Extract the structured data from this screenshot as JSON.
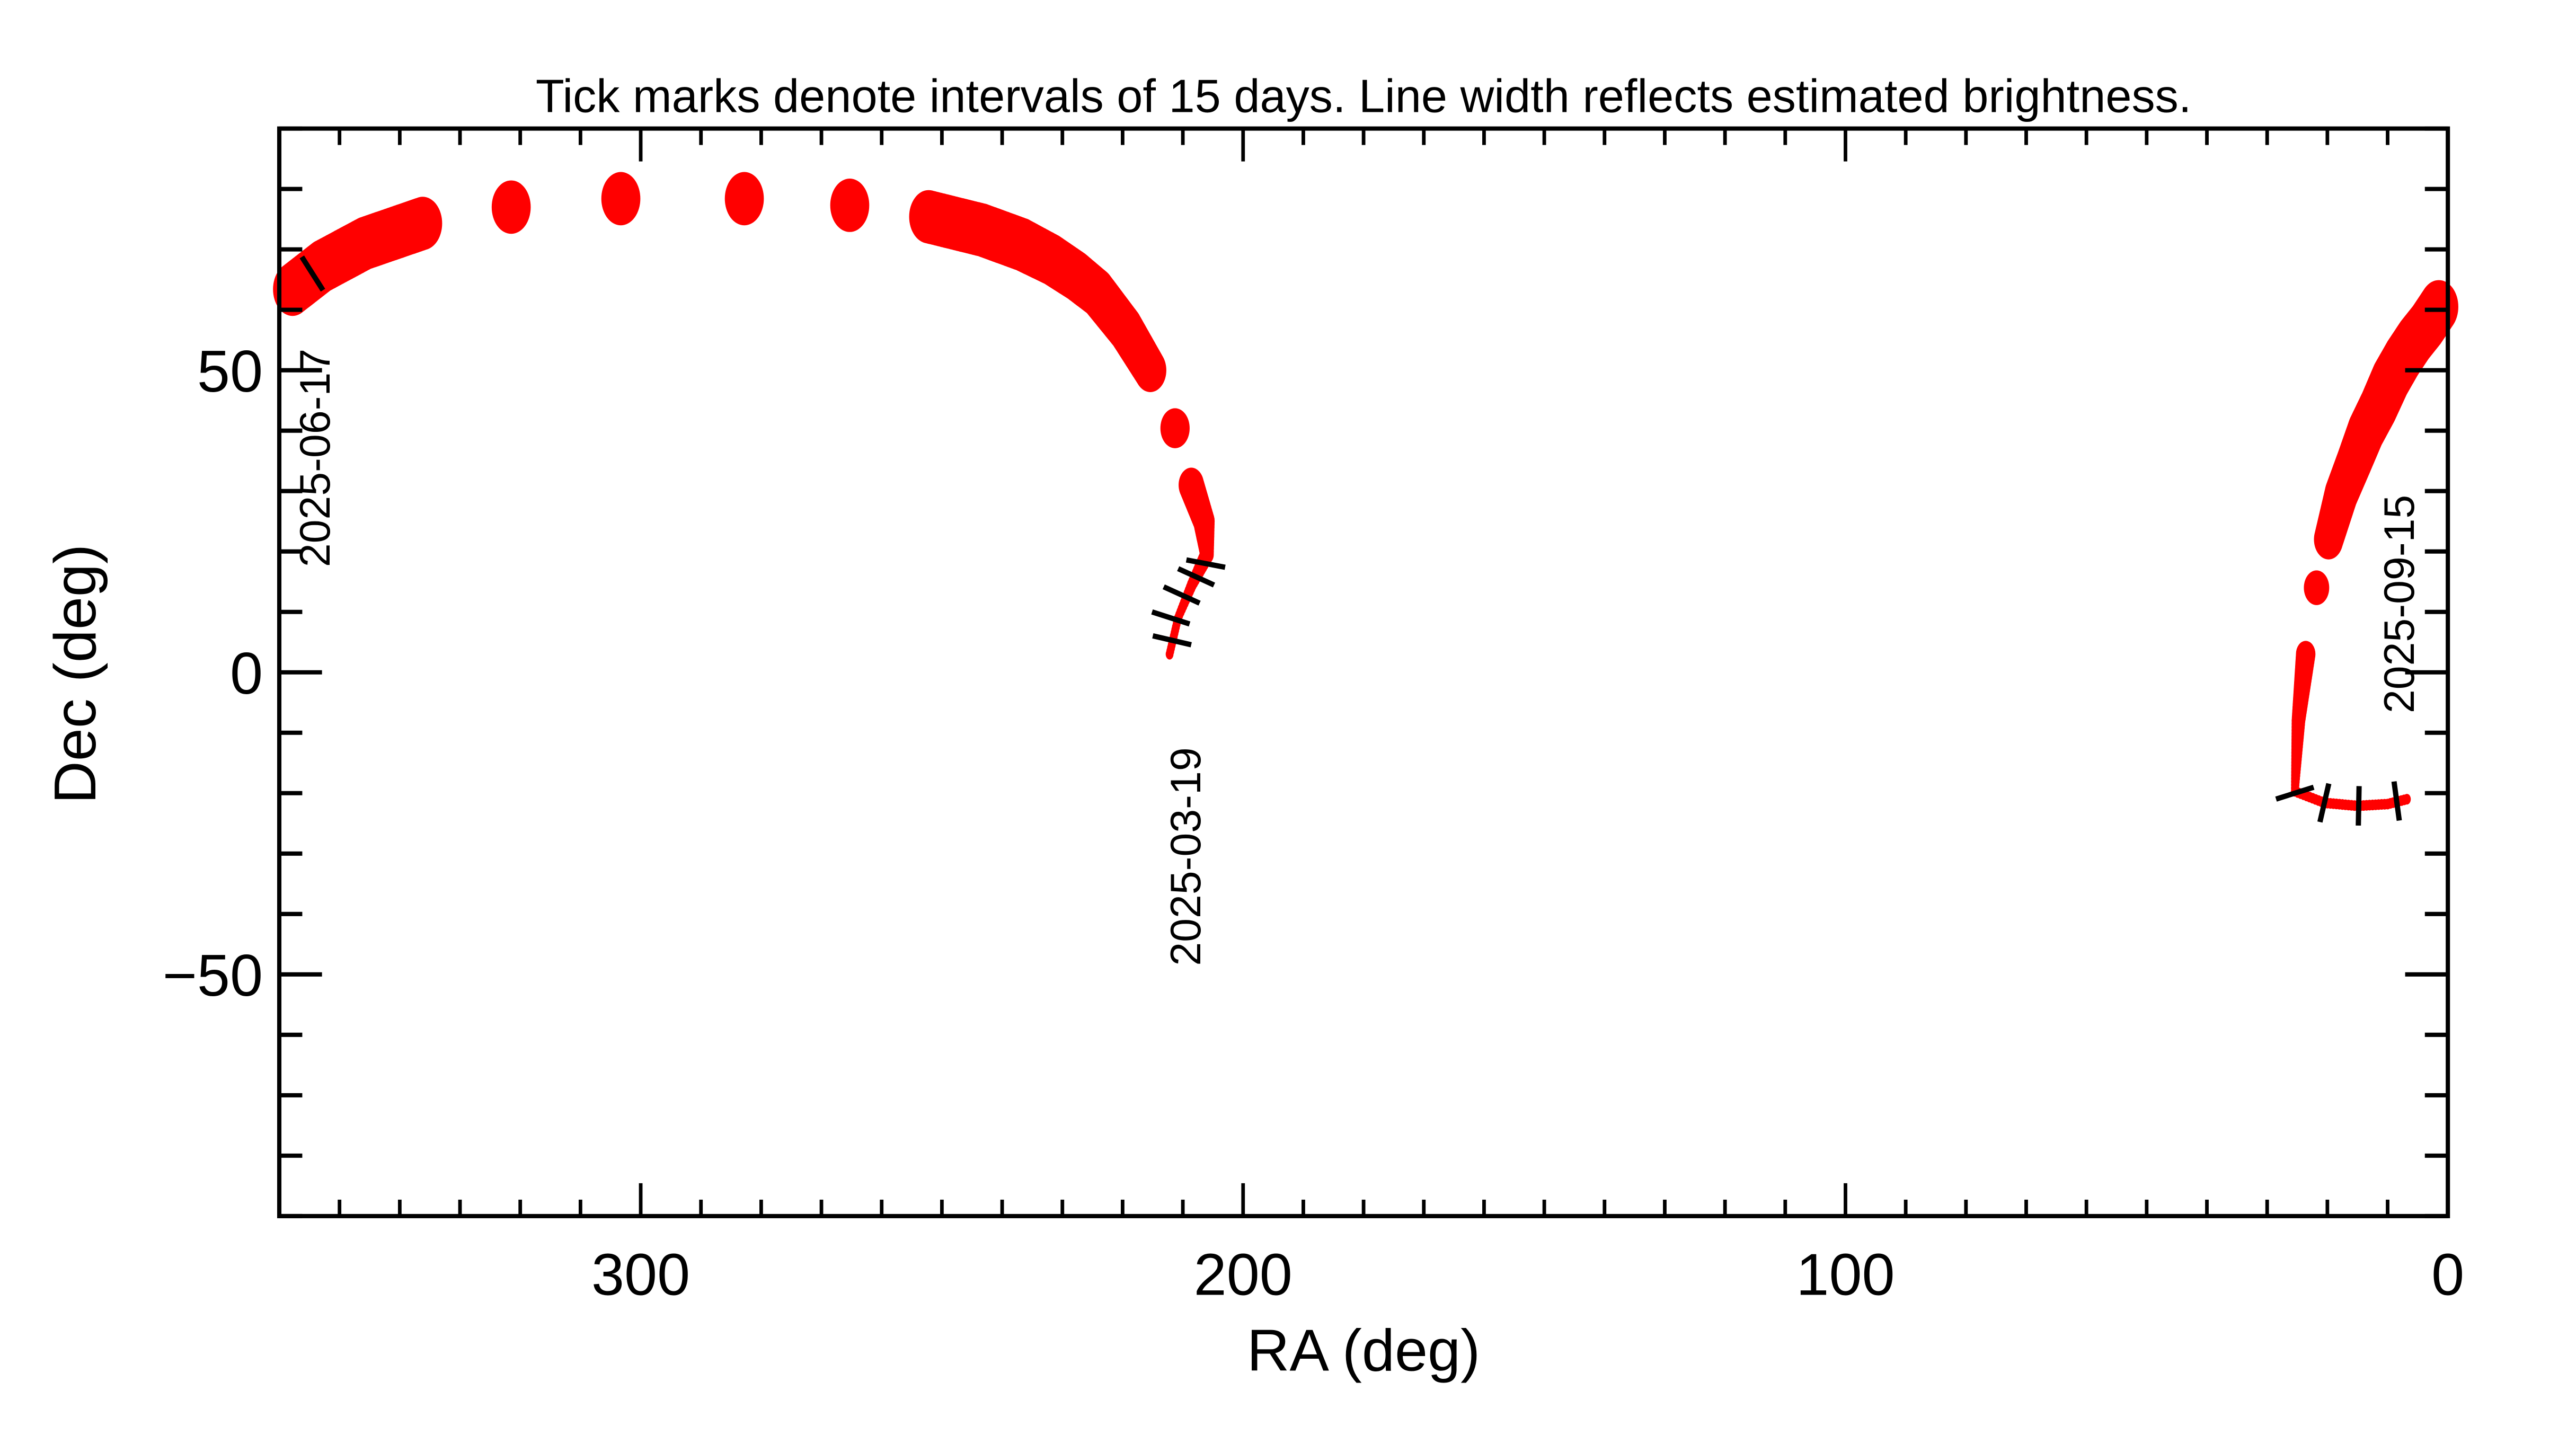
{
  "chart_data": {
    "type": "line",
    "title": "Tick marks denote intervals of 15 days.  Line width reflects estimated brightness.",
    "xlabel": "RA (deg)",
    "ylabel": "Dec (deg)",
    "xlim": [
      360,
      0
    ],
    "ylim": [
      -90,
      90
    ],
    "x_major_ticks": [
      300,
      200,
      100,
      0
    ],
    "x_tick_labels": [
      "300",
      "200",
      "100",
      "0"
    ],
    "y_major_ticks": [
      -50,
      0,
      50
    ],
    "y_tick_labels": [
      "−50",
      "0",
      "50"
    ],
    "x_minor_step": 10,
    "y_minor_step": 10,
    "grid": false,
    "line_color": "#ff0000",
    "tick_color": "#000000",
    "series": [
      {
        "points": [
          {
            "ra": 212.2,
            "dec": 3.0,
            "rel_width": 0.15
          },
          {
            "ra": 210.8,
            "dec": 9.0,
            "rel_width": 0.2
          },
          {
            "ra": 208.5,
            "dec": 14.5,
            "rel_width": 0.25
          },
          {
            "ra": 206.0,
            "dec": 19.5,
            "rel_width": 0.35
          },
          {
            "ra": 206.5,
            "dec": 25.0,
            "rel_width": 0.55
          },
          {
            "ra": 208.6,
            "dec": 31.0,
            "rel_width": 0.65
          },
          {
            "ra": 211.3,
            "dec": 40.4,
            "rel_width": 0.75
          },
          {
            "ra": 215.4,
            "dec": 50.0,
            "rel_width": 0.82
          },
          {
            "ra": 219.5,
            "dec": 56.8,
            "rel_width": 0.88
          },
          {
            "ra": 224.2,
            "dec": 62.8,
            "rel_width": 0.92
          },
          {
            "ra": 227.7,
            "dec": 65.6,
            "rel_width": 0.95
          },
          {
            "ra": 231.8,
            "dec": 68.3,
            "rel_width": 0.97
          },
          {
            "ra": 236.7,
            "dec": 70.8,
            "rel_width": 1.0
          },
          {
            "ra": 243.3,
            "dec": 73.2,
            "rel_width": 1.0
          },
          {
            "ra": 252.2,
            "dec": 75.4,
            "rel_width": 1.0
          },
          {
            "ra": 265.3,
            "dec": 77.3,
            "rel_width": 1.0
          },
          {
            "ra": 282.8,
            "dec": 78.4,
            "rel_width": 1.0
          },
          {
            "ra": 303.3,
            "dec": 78.4,
            "rel_width": 1.0
          },
          {
            "ra": 321.5,
            "dec": 77.0,
            "rel_width": 1.0
          },
          {
            "ra": 336.2,
            "dec": 74.3,
            "rel_width": 1.0
          },
          {
            "ra": 345.8,
            "dec": 71.0,
            "rel_width": 1.0
          },
          {
            "ra": 352.9,
            "dec": 67.2,
            "rel_width": 1.0
          },
          {
            "ra": 357.8,
            "dec": 63.4,
            "rel_width": 1.0
          }
        ]
      },
      {
        "points": [
          {
            "ra": 1.5,
            "dec": 60.5,
            "rel_width": 1.0
          },
          {
            "ra": 3.5,
            "dec": 57.5,
            "rel_width": 1.0
          },
          {
            "ra": 5.5,
            "dec": 55.0,
            "rel_width": 1.0
          },
          {
            "ra": 7.5,
            "dec": 52.0,
            "rel_width": 1.0
          },
          {
            "ra": 9.5,
            "dec": 48.5,
            "rel_width": 1.0
          },
          {
            "ra": 11.5,
            "dec": 44.0,
            "rel_width": 0.98
          },
          {
            "ra": 13.6,
            "dec": 39.9,
            "rel_width": 0.95
          },
          {
            "ra": 15.5,
            "dec": 35.0,
            "rel_width": 0.9
          },
          {
            "ra": 17.7,
            "dec": 29.5,
            "rel_width": 0.85
          },
          {
            "ra": 19.8,
            "dec": 22.0,
            "rel_width": 0.75
          },
          {
            "ra": 21.8,
            "dec": 14.0,
            "rel_width": 0.65
          },
          {
            "ra": 23.6,
            "dec": 3.0,
            "rel_width": 0.5
          },
          {
            "ra": 24.8,
            "dec": -8.0,
            "rel_width": 0.35
          },
          {
            "ra": 25.4,
            "dec": -19.7,
            "rel_width": 0.2
          },
          {
            "ra": 20.5,
            "dec": -21.6,
            "rel_width": 0.15
          },
          {
            "ra": 15.0,
            "dec": -22.1,
            "rel_width": 0.15
          },
          {
            "ra": 10.0,
            "dec": -21.8,
            "rel_width": 0.15
          },
          {
            "ra": 6.8,
            "dec": -21.0,
            "rel_width": 0.15
          }
        ]
      }
    ],
    "date_ticks": [
      {
        "ra": 211.8,
        "dec": 5.3
      },
      {
        "ra": 212.0,
        "dec": 9.0
      },
      {
        "ra": 210.2,
        "dec": 12.8
      },
      {
        "ra": 207.8,
        "dec": 15.8
      },
      {
        "ra": 206.2,
        "dec": 18.0
      },
      {
        "ra": 354.5,
        "dec": 66.0
      },
      {
        "ra": 25.4,
        "dec": -20.0
      },
      {
        "ra": 20.5,
        "dec": -21.6
      },
      {
        "ra": 14.8,
        "dec": -22.1
      },
      {
        "ra": 8.5,
        "dec": -21.3
      }
    ],
    "annotations": [
      {
        "text": "2025-03-19",
        "ra": 209,
        "dec": -30.5
      },
      {
        "text": "2025-06-17",
        "ra": 353.5,
        "dec": 35.5
      },
      {
        "text": "2025-09-15",
        "ra": 7.5,
        "dec": 11.3
      }
    ]
  }
}
